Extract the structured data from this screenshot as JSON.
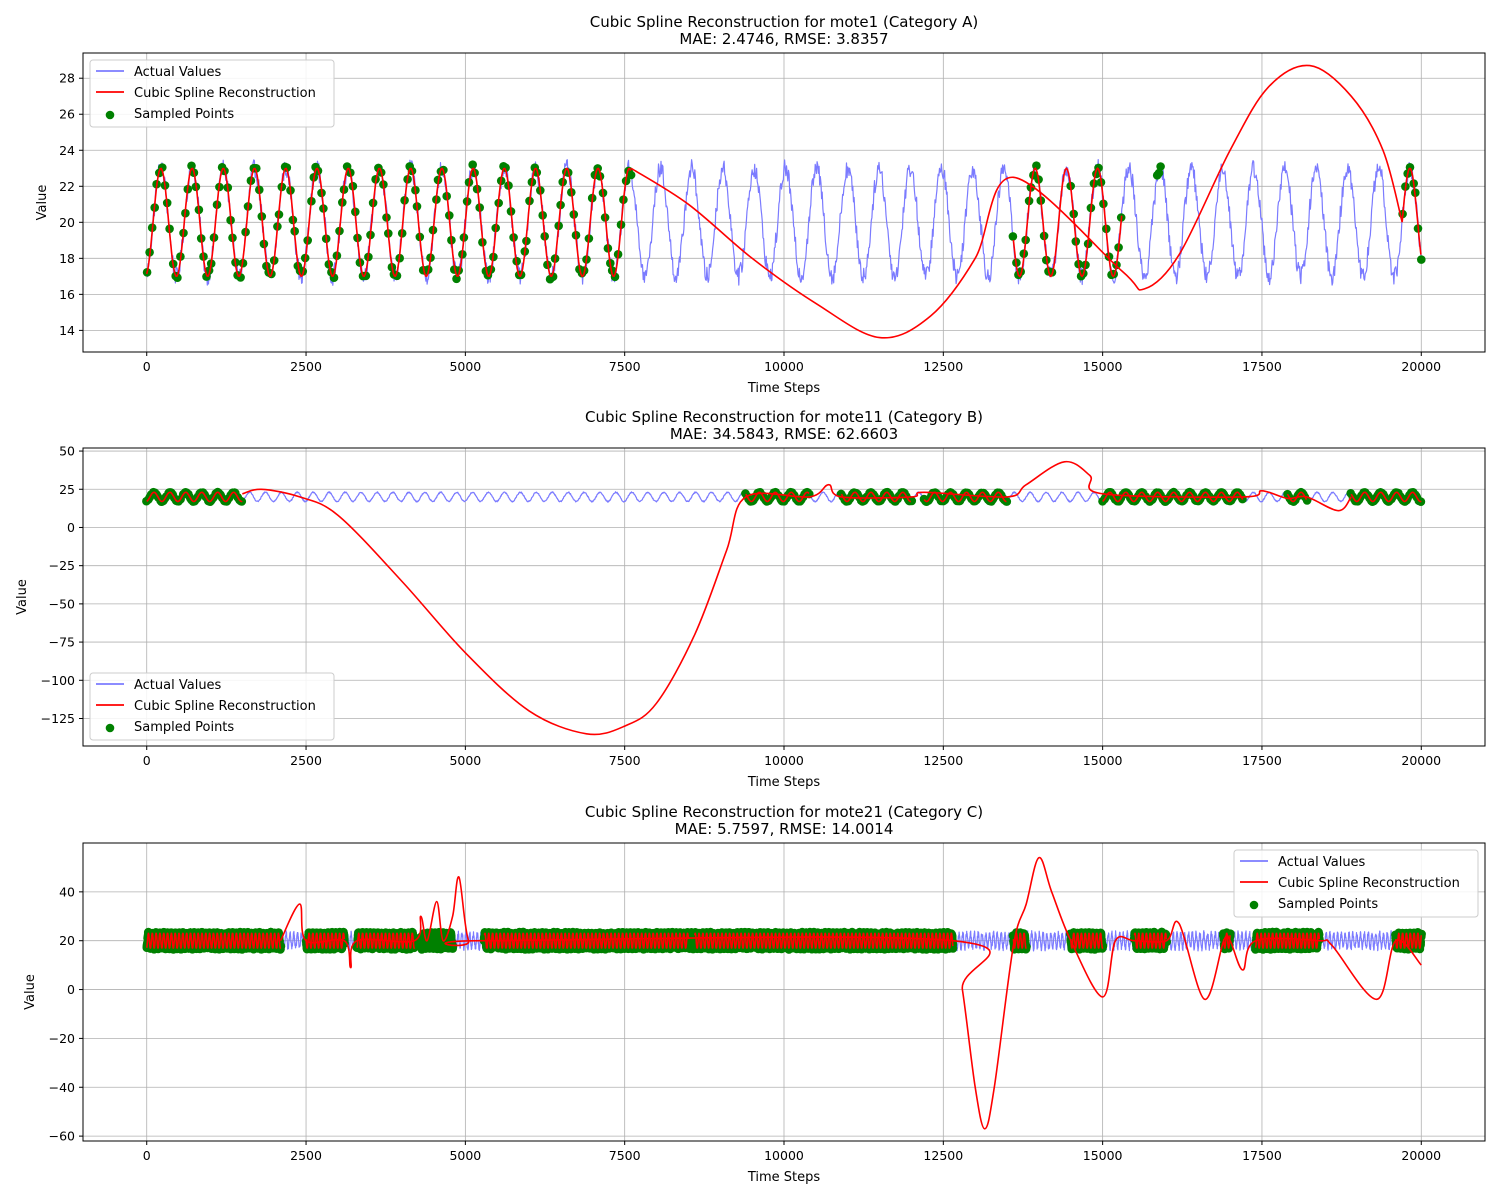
{
  "chart_data": [
    {
      "type": "line",
      "title": "Cubic Spline Reconstruction for mote1 (Category A)",
      "subtitle": "MAE: 2.4746, RMSE: 3.8357",
      "xlabel": "Time Steps",
      "ylabel": "Value",
      "xlim": [
        -1000,
        21000
      ],
      "ylim": [
        12.8,
        29.4
      ],
      "xticks": [
        0,
        2500,
        5000,
        7500,
        10000,
        12500,
        15000,
        17500,
        20000
      ],
      "yticks": [
        14,
        16,
        18,
        20,
        22,
        24,
        26,
        28
      ],
      "grid": true,
      "legend_position": "upper left",
      "colors": {
        "actual": "#7b7bff",
        "spline": "#ff0000",
        "sampled": "#008000"
      },
      "series": [
        {
          "name": "Actual Values",
          "kind": "oscillation",
          "center": 20.0,
          "amplitude": 3.0,
          "noise": 0.5,
          "period": 490,
          "x_range": [
            0,
            20000
          ]
        },
        {
          "name": "Cubic Spline Reconstruction",
          "kind": "line",
          "segments": [
            {
              "x_range": [
                0,
                7600
              ],
              "follows": "actual"
            },
            {
              "x_range": [
                13600,
                15300
              ],
              "follows": "actual"
            },
            {
              "x_range": [
                19700,
                20000
              ],
              "follows": "actual"
            }
          ],
          "points": [
            [
              7600,
              23.0
            ],
            [
              8500,
              21.0
            ],
            [
              9500,
              18.0
            ],
            [
              10500,
              15.5
            ],
            [
              11500,
              13.6
            ],
            [
              12300,
              14.8
            ],
            [
              13000,
              18.0
            ],
            [
              13600,
              22.5
            ],
            [
              15300,
              17.3
            ],
            [
              15650,
              16.3
            ],
            [
              16200,
              18.2
            ],
            [
              17000,
              24.0
            ],
            [
              17600,
              27.5
            ],
            [
              18250,
              28.7
            ],
            [
              18900,
              27.0
            ],
            [
              19400,
              24.0
            ],
            [
              19700,
              20.0
            ]
          ]
        },
        {
          "name": "Sampled Points",
          "kind": "points",
          "x_ranges": [
            [
              0,
              7600
            ],
            [
              13600,
              14200
            ],
            [
              14500,
              15300
            ],
            [
              15850,
              15900
            ],
            [
              19700,
              20000
            ]
          ],
          "density": 1
        }
      ]
    },
    {
      "type": "line",
      "title": "Cubic Spline Reconstruction for mote11 (Category B)",
      "subtitle": "MAE: 34.5843, RMSE: 62.6603",
      "xlabel": "Time Steps",
      "ylabel": "Value",
      "xlim": [
        -1000,
        21000
      ],
      "ylim": [
        -143,
        52
      ],
      "xticks": [
        0,
        2500,
        5000,
        7500,
        10000,
        12500,
        15000,
        17500,
        20000
      ],
      "yticks": [
        -125,
        -100,
        -75,
        -50,
        -25,
        0,
        25,
        50
      ],
      "ytick_labels": [
        "−125",
        "−100",
        "−75",
        "−50",
        "−25",
        "0",
        "25",
        "50"
      ],
      "grid": true,
      "legend_position": "lower left",
      "colors": {
        "actual": "#7b7bff",
        "spline": "#ff0000",
        "sampled": "#008000"
      },
      "series": [
        {
          "name": "Actual Values",
          "kind": "oscillation",
          "center": 20.0,
          "amplitude": 3.0,
          "noise": 0.4,
          "period": 250,
          "x_range": [
            0,
            20000
          ]
        },
        {
          "name": "Cubic Spline Reconstruction",
          "kind": "line",
          "segments": [
            {
              "x_range": [
                0,
                1500
              ],
              "follows": "actual"
            },
            {
              "x_range": [
                9400,
                10400
              ],
              "follows": "actual"
            },
            {
              "x_range": [
                10900,
                12000
              ],
              "follows": "actual"
            },
            {
              "x_range": [
                12200,
                13500
              ],
              "follows": "actual"
            },
            {
              "x_range": [
                15000,
                17200
              ],
              "follows": "actual"
            },
            {
              "x_range": [
                17900,
                18200
              ],
              "follows": "actual"
            },
            {
              "x_range": [
                18900,
                20000
              ],
              "follows": "actual"
            }
          ],
          "points": [
            [
              1500,
              22.0
            ],
            [
              1800,
              25.0
            ],
            [
              2400,
              20.0
            ],
            [
              3000,
              8.0
            ],
            [
              4000,
              -35.0
            ],
            [
              5000,
              -82.0
            ],
            [
              6000,
              -120.0
            ],
            [
              6900,
              -135.0
            ],
            [
              7500,
              -130.0
            ],
            [
              8000,
              -115.0
            ],
            [
              8600,
              -70.0
            ],
            [
              9100,
              -15.0
            ],
            [
              9400,
              20.0
            ],
            [
              10400,
              20.0
            ],
            [
              10700,
              28.0
            ],
            [
              10900,
              20.0
            ],
            [
              12000,
              20.0
            ],
            [
              12200,
              23.0
            ],
            [
              13500,
              20.0
            ],
            [
              13800,
              28.0
            ],
            [
              14400,
              43.0
            ],
            [
              14800,
              34.0
            ],
            [
              15000,
              22.0
            ],
            [
              17200,
              20.0
            ],
            [
              17500,
              24.0
            ],
            [
              17900,
              19.0
            ],
            [
              18200,
              20.0
            ],
            [
              18700,
              11.0
            ],
            [
              18900,
              20.0
            ]
          ]
        },
        {
          "name": "Sampled Points",
          "kind": "points",
          "x_ranges": [
            [
              0,
              1500
            ],
            [
              9400,
              10400
            ],
            [
              10900,
              12000
            ],
            [
              12200,
              13500
            ],
            [
              15000,
              17200
            ],
            [
              17900,
              18200
            ],
            [
              18900,
              20000
            ]
          ],
          "density": 1
        }
      ]
    },
    {
      "type": "line",
      "title": "Cubic Spline Reconstruction for mote21 (Category C)",
      "subtitle": "MAE: 5.7597, RMSE: 14.0014",
      "xlabel": "Time Steps",
      "ylabel": "Value",
      "xlim": [
        -1000,
        21000
      ],
      "ylim": [
        -62,
        60
      ],
      "xticks": [
        0,
        2500,
        5000,
        7500,
        10000,
        12500,
        15000,
        17500,
        20000
      ],
      "yticks": [
        -60,
        -40,
        -20,
        0,
        20,
        40
      ],
      "ytick_labels": [
        "−60",
        "−40",
        "−20",
        "0",
        "20",
        "40"
      ],
      "grid": true,
      "legend_position": "upper right",
      "colors": {
        "actual": "#7b7bff",
        "spline": "#ff0000",
        "sampled": "#008000"
      },
      "series": [
        {
          "name": "Actual Values",
          "kind": "oscillation",
          "center": 20.0,
          "amplitude": 3.0,
          "noise": 1.2,
          "period": 60,
          "x_range": [
            0,
            20000
          ]
        },
        {
          "name": "Cubic Spline Reconstruction",
          "kind": "line",
          "segments": [
            {
              "x_range": [
                0,
                2100
              ],
              "follows": "actual"
            },
            {
              "x_range": [
                2500,
                3100
              ],
              "follows": "actual"
            },
            {
              "x_range": [
                3300,
                4200
              ],
              "follows": "actual"
            },
            {
              "x_range": [
                5300,
                8500
              ],
              "follows": "actual"
            },
            {
              "x_range": [
                8600,
                12650
              ],
              "follows": "actual"
            },
            {
              "x_range": [
                13600,
                13800
              ],
              "follows": "actual"
            },
            {
              "x_range": [
                14500,
                15000
              ],
              "follows": "actual"
            },
            {
              "x_range": [
                15500,
                16000
              ],
              "follows": "actual"
            },
            {
              "x_range": [
                16900,
                17000
              ],
              "follows": "actual"
            },
            {
              "x_range": [
                17400,
                18400
              ],
              "follows": "actual"
            },
            {
              "x_range": [
                19600,
                20000
              ],
              "follows": "actual"
            }
          ],
          "points": [
            [
              2100,
              20.0
            ],
            [
              2400,
              35.0
            ],
            [
              2500,
              20.0
            ],
            [
              3100,
              20.0
            ],
            [
              3200,
              9.0
            ],
            [
              3300,
              20.0
            ],
            [
              4200,
              20.0
            ],
            [
              4300,
              30.0
            ],
            [
              4400,
              20.0
            ],
            [
              4550,
              36.0
            ],
            [
              4650,
              20.0
            ],
            [
              4800,
              30.0
            ],
            [
              4900,
              46.0
            ],
            [
              5050,
              20.0
            ],
            [
              5300,
              20.0
            ],
            [
              12650,
              20.0
            ],
            [
              12800,
              0.0
            ],
            [
              13000,
              -40.0
            ],
            [
              13150,
              -57.0
            ],
            [
              13300,
              -40.0
            ],
            [
              13600,
              18.0
            ],
            [
              13800,
              35.0
            ],
            [
              14000,
              54.0
            ],
            [
              14200,
              40.0
            ],
            [
              14500,
              20.0
            ],
            [
              15000,
              -3.0
            ],
            [
              15200,
              20.0
            ],
            [
              15500,
              20.0
            ],
            [
              16000,
              20.0
            ],
            [
              16200,
              27.0
            ],
            [
              16600,
              -4.0
            ],
            [
              16900,
              20.0
            ],
            [
              17000,
              20.0
            ],
            [
              17200,
              8.0
            ],
            [
              17400,
              20.0
            ],
            [
              18400,
              20.0
            ],
            [
              18600,
              18.0
            ],
            [
              19300,
              -4.0
            ],
            [
              19600,
              20.0
            ],
            [
              20000,
              10.0
            ]
          ]
        },
        {
          "name": "Sampled Points",
          "kind": "points",
          "x_ranges": [
            [
              0,
              2100
            ],
            [
              2500,
              3100
            ],
            [
              3300,
              4200
            ],
            [
              4300,
              4800
            ],
            [
              5300,
              12650
            ],
            [
              13600,
              13800
            ],
            [
              14500,
              15000
            ],
            [
              15500,
              16000
            ],
            [
              16900,
              17000
            ],
            [
              17400,
              18400
            ],
            [
              19600,
              20000
            ]
          ],
          "density": 3
        }
      ]
    }
  ]
}
